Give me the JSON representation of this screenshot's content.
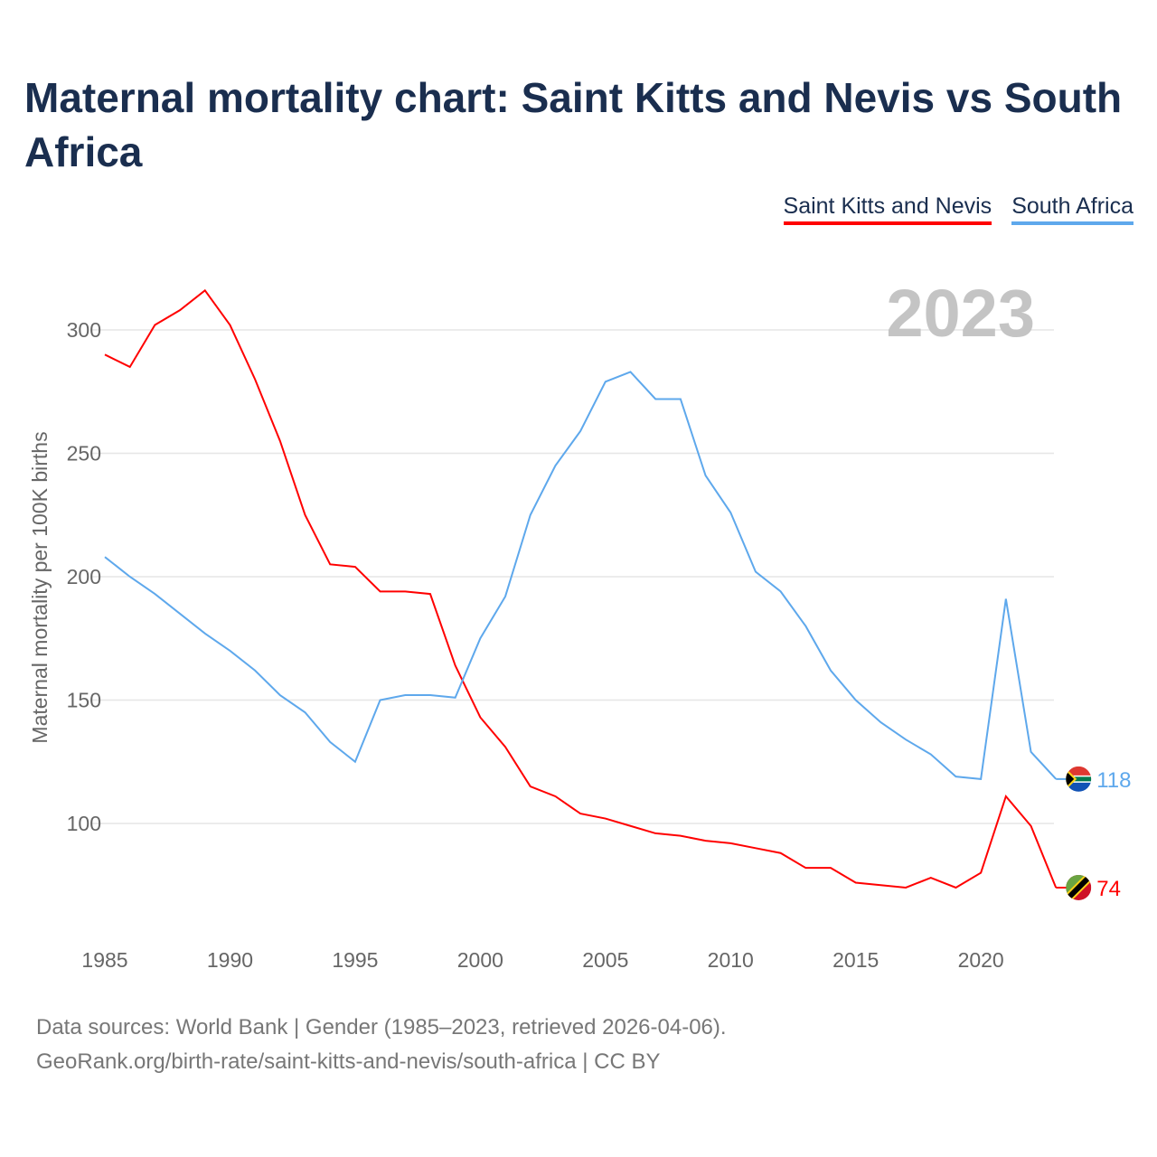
{
  "title": "Maternal mortality chart: Saint Kitts and Nevis vs South Africa",
  "legend": [
    {
      "label": "Saint Kitts and Nevis",
      "color": "#ff0000"
    },
    {
      "label": "South Africa",
      "color": "#5ea8ec"
    }
  ],
  "source_line1": "Data sources: World Bank | Gender (1985–2023, retrieved 2026-04-06).",
  "source_line2": "GeoRank.org/birth-rate/saint-kitts-and-nevis/south-africa | CC BY",
  "chart_data": {
    "type": "line",
    "title": "Maternal mortality chart: Saint Kitts and Nevis vs South Africa",
    "year_label": "2023",
    "xlabel": "",
    "ylabel": "Maternal mortality per 100K births",
    "xlim": [
      1985,
      2023
    ],
    "ylim": [
      50,
      320
    ],
    "x_ticks": [
      1985,
      1990,
      1995,
      2000,
      2005,
      2010,
      2015,
      2020
    ],
    "y_ticks": [
      100,
      150,
      200,
      250,
      300
    ],
    "grid": true,
    "legend_position": "top-right",
    "x": [
      1985,
      1986,
      1987,
      1988,
      1989,
      1990,
      1991,
      1992,
      1993,
      1994,
      1995,
      1996,
      1997,
      1998,
      1999,
      2000,
      2001,
      2002,
      2003,
      2004,
      2005,
      2006,
      2007,
      2008,
      2009,
      2010,
      2011,
      2012,
      2013,
      2014,
      2015,
      2016,
      2017,
      2018,
      2019,
      2020,
      2021,
      2022,
      2023
    ],
    "series": [
      {
        "name": "Saint Kitts and Nevis",
        "color": "#ff0000",
        "end_label": "74",
        "values": [
          290,
          285,
          302,
          308,
          316,
          302,
          280,
          255,
          225,
          205,
          204,
          194,
          194,
          193,
          164,
          143,
          131,
          115,
          111,
          104,
          102,
          99,
          96,
          95,
          93,
          92,
          90,
          88,
          82,
          82,
          76,
          75,
          74,
          78,
          74,
          80,
          111,
          99,
          74
        ]
      },
      {
        "name": "South Africa",
        "color": "#5ea8ec",
        "end_label": "118",
        "values": [
          208,
          200,
          193,
          185,
          177,
          170,
          162,
          152,
          145,
          133,
          125,
          150,
          152,
          152,
          151,
          175,
          192,
          225,
          245,
          259,
          279,
          283,
          272,
          272,
          241,
          226,
          202,
          194,
          180,
          162,
          150,
          141,
          134,
          128,
          119,
          118,
          191,
          129,
          118
        ]
      }
    ]
  }
}
